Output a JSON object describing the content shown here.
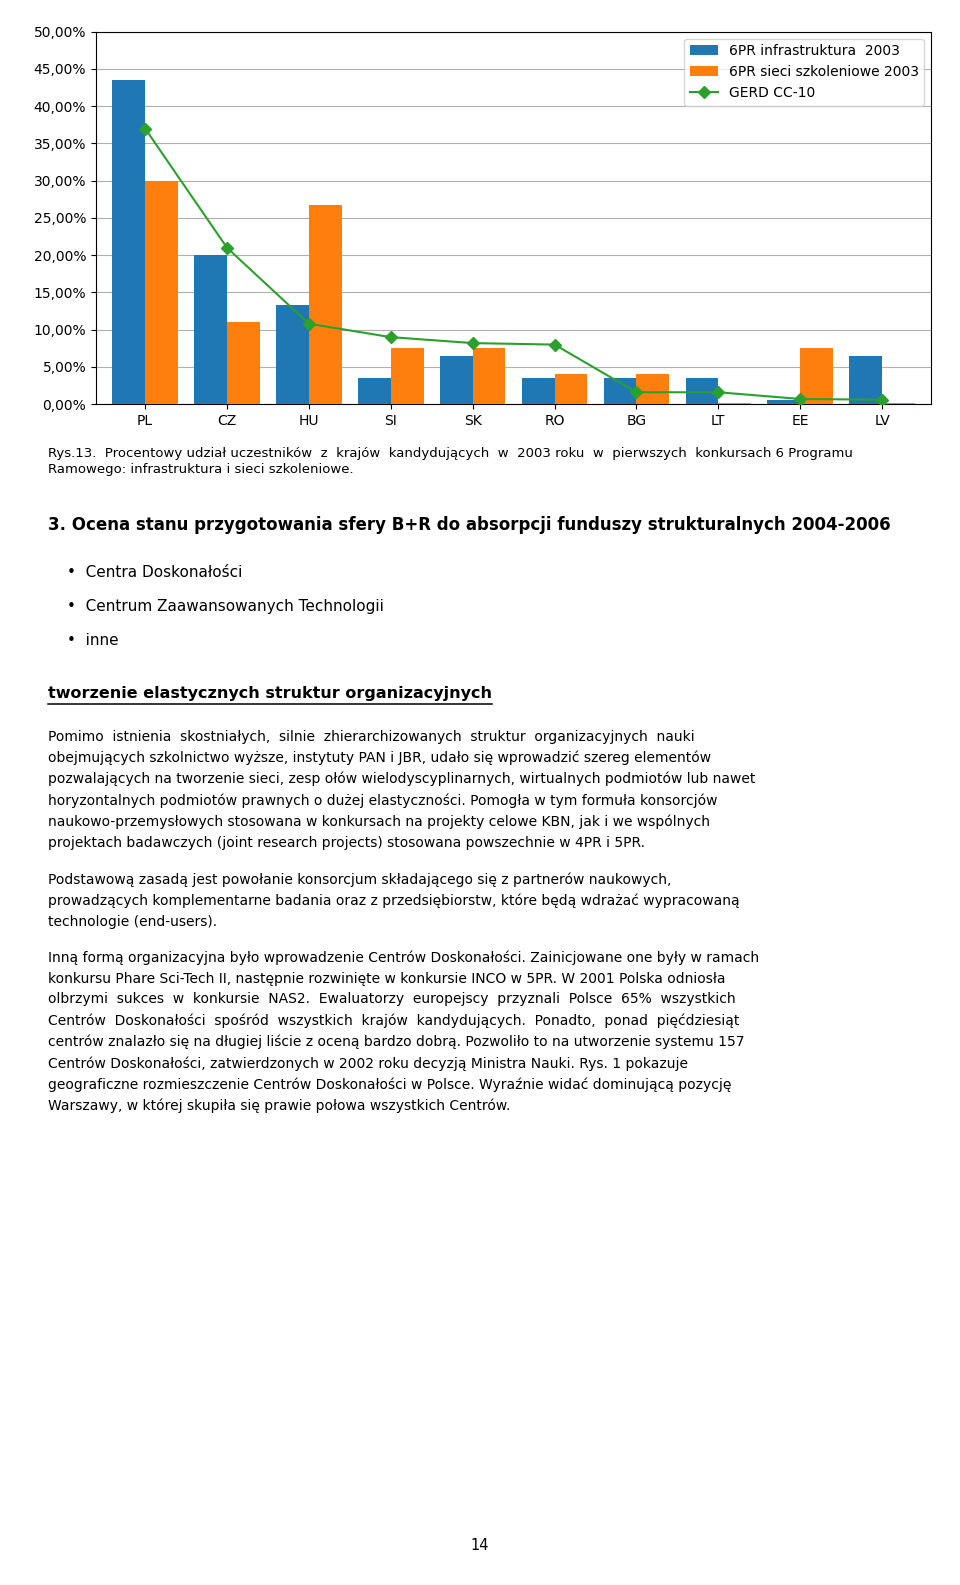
{
  "chart_data": {
    "type": "bar",
    "title": "Rys.13.  Procentowy udział uczestników  z  krajów  kandydujących  w  2003 roku  w  pierwszych  konkursach 6 Programu\nRamowego: infrastruktura i sieci szkoleniowe.",
    "categories": [
      "PL",
      "CZ",
      "HU",
      "SI",
      "SK",
      "RO",
      "BG",
      "LT",
      "EE",
      "LV"
    ],
    "series": [
      {
        "name": "6PR infrastruktura  2003",
        "values": [
          0.435,
          0.2,
          0.133,
          0.035,
          0.065,
          0.035,
          0.035,
          0.035,
          0.005,
          0.065
        ]
      },
      {
        "name": "6PR sieci szkoleniowe 2003",
        "values": [
          0.3,
          0.11,
          0.268,
          0.075,
          0.075,
          0.04,
          0.04,
          0.002,
          0.075,
          0.002
        ]
      },
      {
        "name": "GERD CC-10",
        "type": "line",
        "marker": "diamond",
        "values": [
          0.37,
          0.21,
          0.108,
          0.09,
          0.082,
          0.08,
          0.016,
          0.016,
          0.007,
          0.006
        ]
      }
    ],
    "ylim": [
      0.0,
      0.5
    ],
    "yticks": [
      {
        "value": 0.0,
        "label": "0,00%"
      },
      {
        "value": 0.05,
        "label": "5,00%"
      },
      {
        "value": 0.1,
        "label": "10,00%"
      },
      {
        "value": 0.15,
        "label": "15,00%"
      },
      {
        "value": 0.2,
        "label": "20,00%"
      },
      {
        "value": 0.25,
        "label": "25,00%"
      },
      {
        "value": 0.3,
        "label": "30,00%"
      },
      {
        "value": 0.35,
        "label": "35,00%"
      },
      {
        "value": 0.4,
        "label": "40,00%"
      },
      {
        "value": 0.45,
        "label": "45,00%"
      },
      {
        "value": 0.5,
        "label": "50,00%"
      }
    ],
    "grid": true,
    "legend": "upper right",
    "annotations": [
      "3. Ocena stanu przygotowania sfery B+R do absorpcji funduszy strukturalnych 2004-2006",
      "•  Centra Doskonałości",
      "•  Centrum Zaawansowanych Technologii",
      "•  inne",
      "tworzenie elastycznych struktur organizacyjnych",
      "Pomimo  istnienia  skostniałych,  silnie  zhierarchizowanych  struktur  organizacyjnych  nauki\nobejmujących szkolnictwo wyższe, instytuty PAN i JBR, udało się wprowadzić szereg elementów\npozwalających na tworzenie sieci, zesp ołów wielodyscyplinarnych, wirtualnych podmiotów lub nawet\nhoryzontalnych podmiotów prawnych o dużej elastyczności. Pomogła w tym formuła konsorcjów\nnaukowo-przemysłowych stosowana w konkursach na projekty celowe KBN, jak i we wspólnych\nprojektach badawczych (joint research projects) stosowana powszechnie w 4PR i 5PR.",
      "Podstawową zasadą jest powołanie konsorcjum składającego się z partnerów naukowych,\nprowadzących komplementarne badania oraz z przedsiębiorstw, które będą wdrażać wypracowaną\ntechnologie (end-users).",
      "Inną formą organizacyjna było wprowadzenie Centrów Doskonałości. Zainicjowane one były w ramach\nkonkursu Phare Sci-Tech II, następnie rozwinięte w konkursie INCO w 5PR. W 2001 Polska odniosła\nolbrzymi  sukces  w  konkursie  NAS2.  Ewaluatorzy  europejscy  przyznali  Polsce  65%  wszystkich\nCentrów  Doskonałości  spośród  wszystkich  krajów  kandydujących.  Ponadto,  ponad  pięćdziesiąt\ncentrów znalazło się na długiej liście z oceną bardzo dobrą. Pozwoliło to na utworzenie systemu 157\nCentrów Doskonałości, zatwierdzonych w 2002 roku decyzją Ministra Nauki. Rys. 1 pokazuje\ngeograficzne rozmieszczenie Centrów Doskonałości w Polsce. Wyraźnie widać dominującą pozycję\nWarszawy, w której skupiła się prawie połowa wszystkich Centrów.",
      "14"
    ]
  }
}
